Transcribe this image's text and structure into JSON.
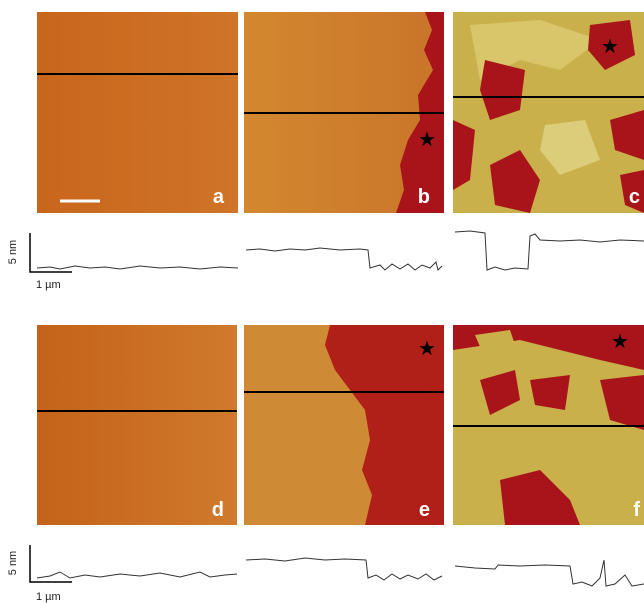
{
  "panels": [
    {
      "label": "a"
    },
    {
      "label": "b"
    },
    {
      "label": "c"
    },
    {
      "label": "d"
    },
    {
      "label": "e"
    },
    {
      "label": "f"
    }
  ],
  "scale_bars": [
    {
      "height": "5 nm",
      "length": "1 µm"
    },
    {
      "height": "5 nm",
      "length": "1 µm"
    }
  ]
}
